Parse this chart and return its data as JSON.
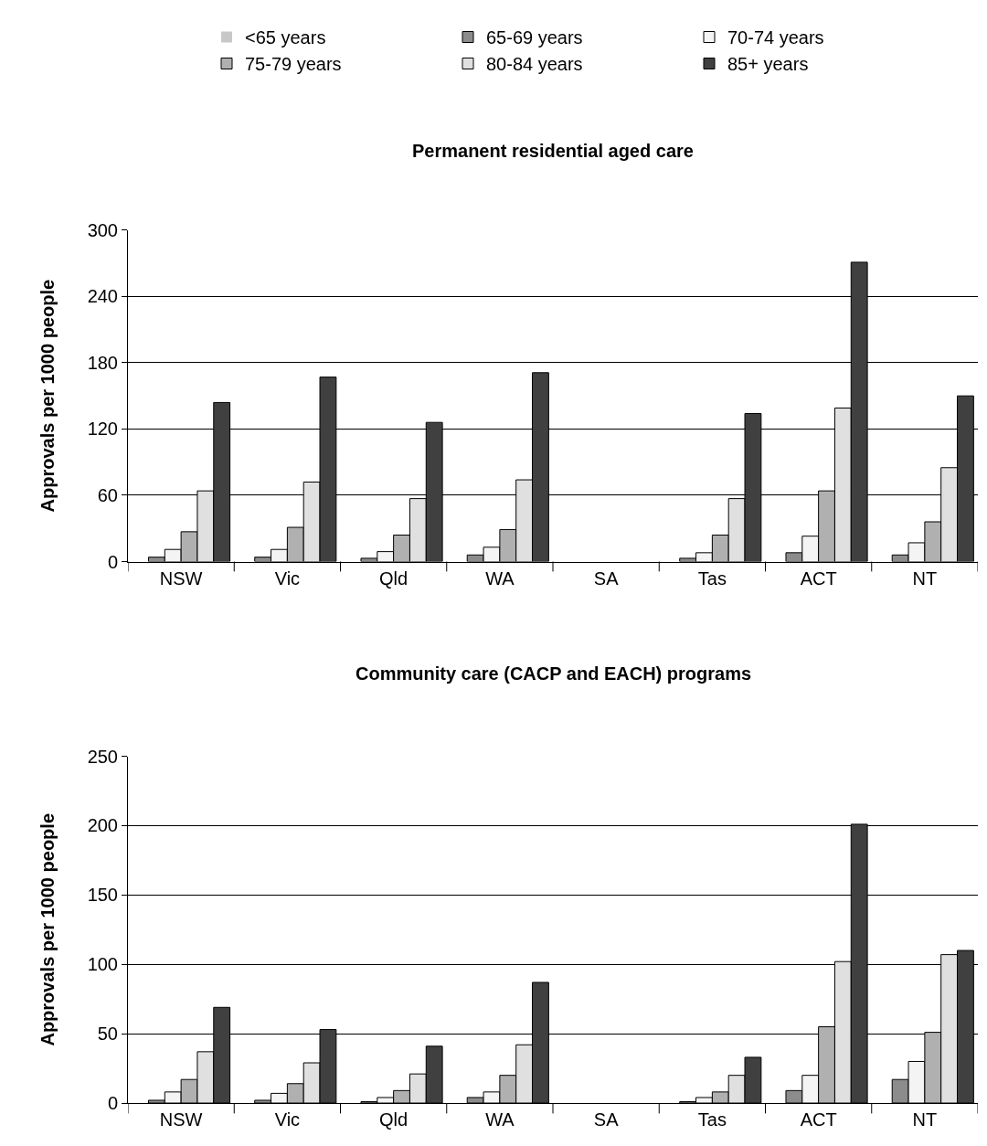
{
  "chart_data": [
    {
      "type": "bar",
      "title": "Permanent residential aged care",
      "ylabel": "Approvals per 1000 people",
      "categories": [
        "NSW",
        "Vic",
        "Qld",
        "WA",
        "SA",
        "Tas",
        "ACT",
        "NT"
      ],
      "ylim": [
        0,
        300
      ],
      "yticks": [
        0,
        60,
        120,
        180,
        240,
        300
      ],
      "grid": "y",
      "legend": "top",
      "series": [
        {
          "name": "<65 years",
          "color": "#c8c8c8",
          "values": [
            0,
            0,
            0,
            0,
            null,
            0,
            0,
            0
          ]
        },
        {
          "name": "65-69 years",
          "color": "#8c8c8c",
          "values": [
            4,
            4,
            3,
            6,
            null,
            3,
            8,
            6
          ]
        },
        {
          "name": "70-74 years",
          "color": "#f4f4f4",
          "values": [
            11,
            11,
            9,
            13,
            null,
            8,
            23,
            17
          ]
        },
        {
          "name": "75-79 years",
          "color": "#b0b0b0",
          "values": [
            27,
            31,
            24,
            29,
            null,
            24,
            64,
            36
          ]
        },
        {
          "name": "80-84 years",
          "color": "#e0e0e0",
          "values": [
            64,
            72,
            57,
            74,
            null,
            57,
            139,
            85
          ]
        },
        {
          "name": "85+ years",
          "color": "#404040",
          "values": [
            144,
            167,
            126,
            171,
            null,
            134,
            271,
            150
          ]
        }
      ]
    },
    {
      "type": "bar",
      "title": "Community care (CACP and EACH) programs",
      "ylabel": "Approvals per 1000 people",
      "categories": [
        "NSW",
        "Vic",
        "Qld",
        "WA",
        "SA",
        "Tas",
        "ACT",
        "NT"
      ],
      "ylim": [
        0,
        250
      ],
      "yticks": [
        0,
        50,
        100,
        150,
        200,
        250
      ],
      "grid": "y",
      "series": [
        {
          "color": "#c8c8c8",
          "values": [
            0,
            0,
            0,
            0,
            null,
            0,
            0,
            0
          ]
        },
        {
          "color": "#8c8c8c",
          "values": [
            2,
            2,
            1,
            4,
            null,
            1,
            9,
            17
          ]
        },
        {
          "color": "#f4f4f4",
          "values": [
            8,
            7,
            4,
            8,
            null,
            4,
            20,
            30
          ]
        },
        {
          "color": "#b0b0b0",
          "values": [
            17,
            14,
            9,
            20,
            null,
            8,
            55,
            51
          ]
        },
        {
          "color": "#e0e0e0",
          "values": [
            37,
            29,
            21,
            42,
            null,
            20,
            102,
            107
          ]
        },
        {
          "color": "#404040",
          "values": [
            69,
            53,
            41,
            87,
            null,
            33,
            201,
            110
          ]
        }
      ]
    }
  ]
}
